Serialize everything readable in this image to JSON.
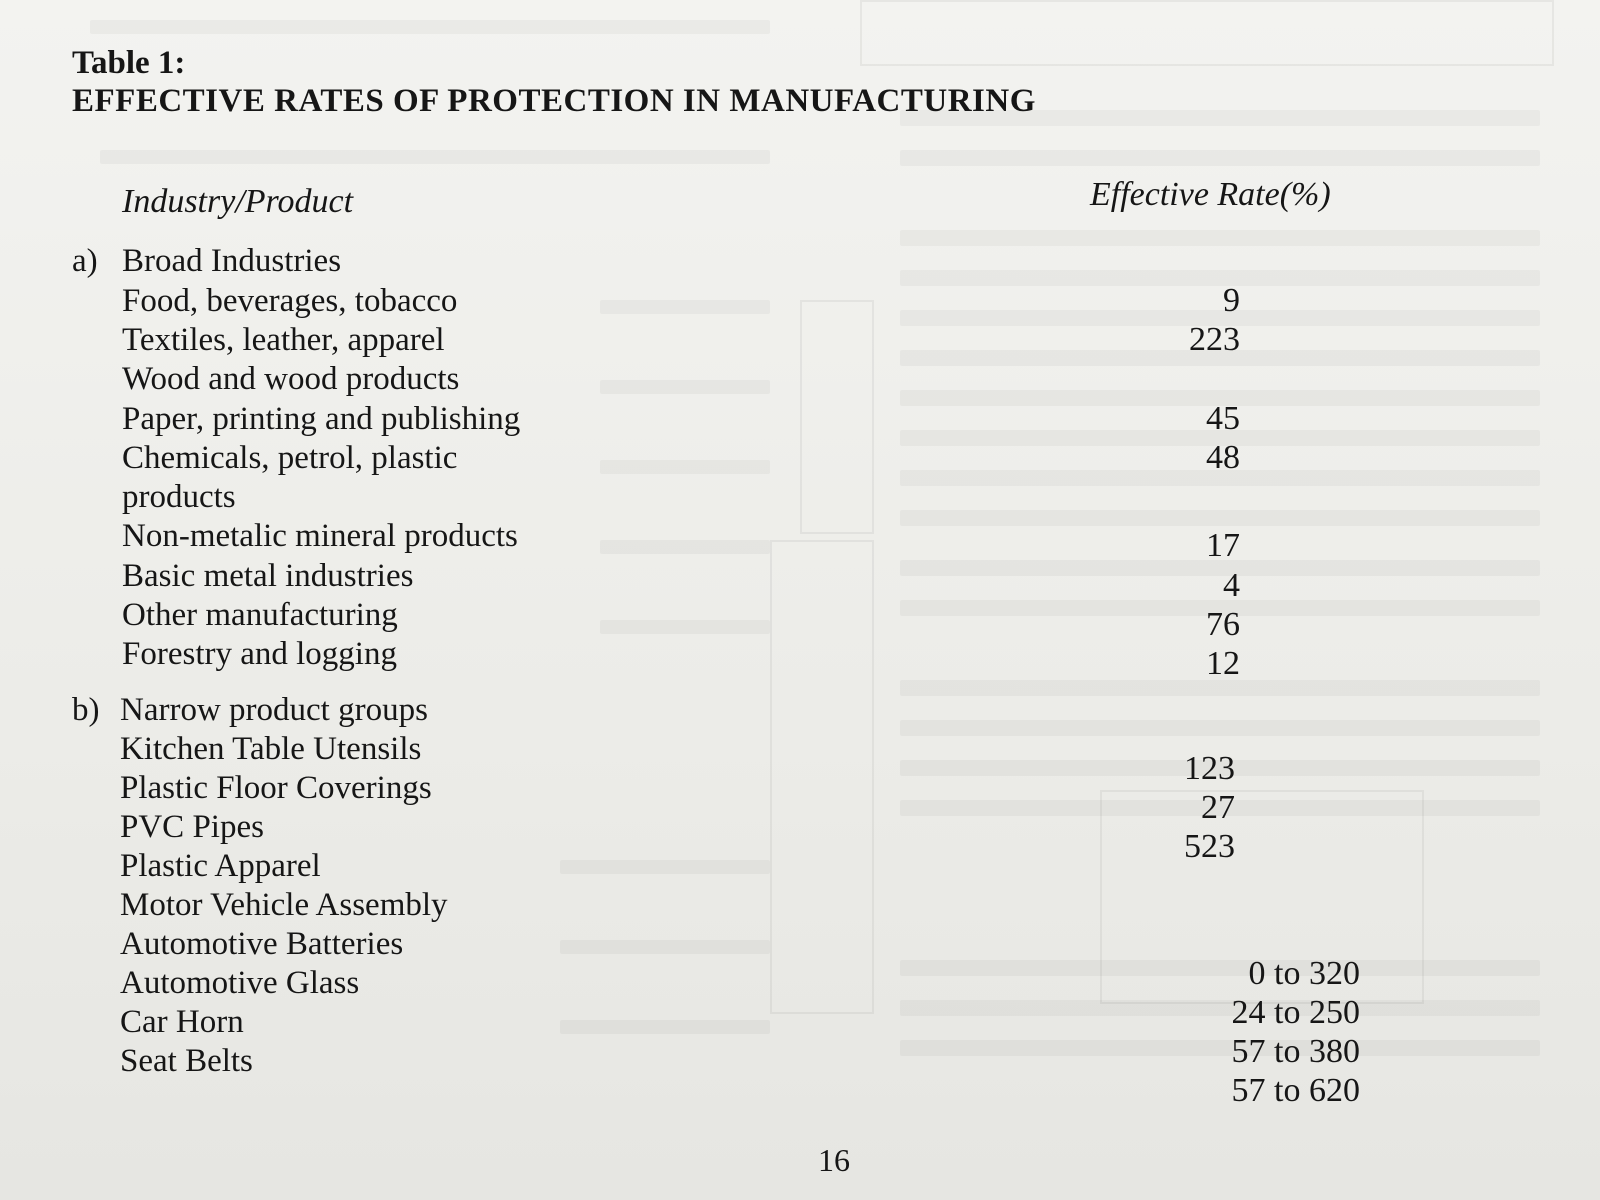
{
  "table": {
    "caption": "Table 1:",
    "title": "EFFECTIVE RATES OF PROTECTION IN MANUFACTURING",
    "column_headers": {
      "left": "Industry/Product",
      "right": "Effective Rate(%)"
    },
    "sections": [
      {
        "marker": "a)",
        "label": "Broad Industries",
        "rows": [
          {
            "name": "Food, beverages, tobacco",
            "rate": "9"
          },
          {
            "name": "Textiles, leather, apparel",
            "rate": "223"
          },
          {
            "name": "Wood and wood products",
            "rate": ""
          },
          {
            "name": "Paper, printing and publishing",
            "rate": "45"
          },
          {
            "name": "Chemicals, petrol, plastic",
            "name_line2": "products",
            "rate": "48"
          },
          {
            "name": "Non-metalic mineral products",
            "rate": "17"
          },
          {
            "name": "Basic metal industries",
            "rate": "4"
          },
          {
            "name": "Other manufacturing",
            "rate": "76"
          },
          {
            "name": "Forestry and logging",
            "rate": "12"
          }
        ]
      },
      {
        "marker": "b)",
        "label": "Narrow product groups",
        "rows": [
          {
            "name": "Kitchen Table Utensils",
            "rate": "123"
          },
          {
            "name": "Plastic Floor Coverings",
            "rate": "27"
          },
          {
            "name": "PVC Pipes",
            "rate": "523"
          },
          {
            "name": "Plastic Apparel",
            "rate": ""
          },
          {
            "name": "Motor Vehicle Assembly",
            "rate": ""
          },
          {
            "name": "Automotive Batteries",
            "rate": "0 to 320"
          },
          {
            "name": "Automotive Glass",
            "rate": "24 to 250"
          },
          {
            "name": "Car Horn",
            "rate": "57 to 380"
          },
          {
            "name": "Seat Belts",
            "rate": "57 to 620"
          }
        ]
      }
    ]
  },
  "page_number": "16",
  "colors": {
    "paper": "#efefec",
    "ink": "#161616"
  }
}
